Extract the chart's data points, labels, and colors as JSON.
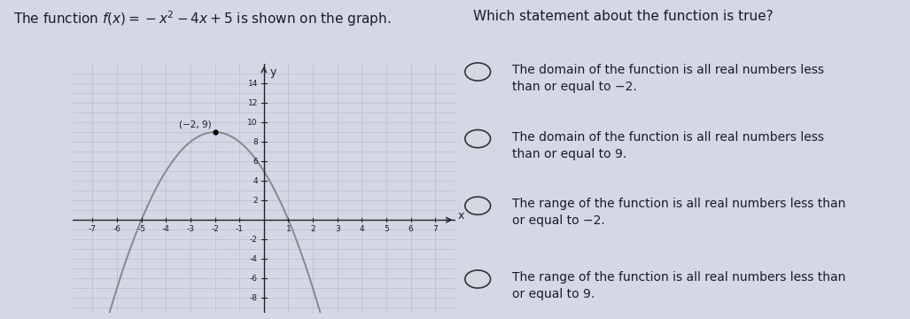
{
  "title_left": "The function $f(x) = -x^2 - 4x + 5$ is shown on the graph.",
  "title_right": "Which statement about the function is true?",
  "choices": [
    "The domain of the function is all real numbers less\nthan or equal to −2.",
    "The domain of the function is all real numbers less\nthan or equal to 9.",
    "The range of the function is all real numbers less than\nor equal to −2.",
    "The range of the function is all real numbers less than\nor equal to 9."
  ],
  "vertex_label": "(−2, 9)",
  "vertex_x": -2,
  "vertex_y": 9,
  "bg_color": "#d4d8e4",
  "grid_color": "#b8bdd0",
  "curve_color": "#888888",
  "axis_color": "#222222",
  "text_color": "#1a1a2e",
  "xlim": [
    -7.8,
    7.8
  ],
  "ylim": [
    -9.5,
    16.0
  ],
  "xticks": [
    -7,
    -6,
    -5,
    -4,
    -3,
    -2,
    -1,
    1,
    2,
    3,
    4,
    5,
    6,
    7
  ],
  "yticks": [
    -8,
    -6,
    -4,
    -2,
    2,
    4,
    6,
    8,
    10,
    12,
    14
  ]
}
